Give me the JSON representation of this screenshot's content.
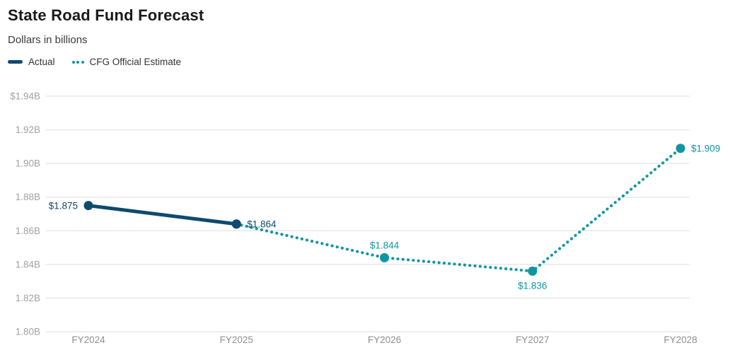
{
  "header": {
    "title": "State Road Fund Forecast",
    "subtitle": "Dollars in billions"
  },
  "legend": [
    {
      "label": "Actual",
      "color": "#0e4a6e",
      "style": "solid"
    },
    {
      "label": "CFG Official Estimate",
      "color": "#0f96a4",
      "style": "dotted"
    }
  ],
  "colors": {
    "actual": "#0e4a6e",
    "estimate": "#0f96a4",
    "gridline": "#e8e8e8",
    "y_tick_text": "#a2a2a2",
    "x_tick_text": "#8f8f8f",
    "title_text": "#1a1a1a"
  },
  "chart_data": {
    "type": "line",
    "title": "State Road Fund Forecast",
    "subtitle": "Dollars in billions",
    "categories": [
      "FY2024",
      "FY2025",
      "FY2026",
      "FY2027",
      "FY2028"
    ],
    "series": [
      {
        "name": "Actual",
        "style": "solid",
        "color": "#0e4a6e",
        "values": [
          1.875,
          1.864,
          null,
          null,
          null
        ]
      },
      {
        "name": "CFG Official Estimate",
        "style": "dotted",
        "color": "#0f96a4",
        "values": [
          null,
          1.864,
          1.844,
          1.836,
          1.909
        ]
      }
    ],
    "point_labels": [
      {
        "text": "$1.875",
        "x_index": 0,
        "value": 1.875,
        "color": "#0e4a6e",
        "placement": "left"
      },
      {
        "text": "$1.864",
        "x_index": 1,
        "value": 1.864,
        "color": "#0e4a6e",
        "placement": "right"
      },
      {
        "text": "$1.844",
        "x_index": 2,
        "value": 1.844,
        "color": "#0f96a4",
        "placement": "above"
      },
      {
        "text": "$1.836",
        "x_index": 3,
        "value": 1.836,
        "color": "#0f96a4",
        "placement": "below"
      },
      {
        "text": "$1.909",
        "x_index": 4,
        "value": 1.909,
        "color": "#0f96a4",
        "placement": "right"
      }
    ],
    "ylim": [
      1.8,
      1.94
    ],
    "ytick_step": 0.02,
    "yticks": [
      {
        "value": 1.94,
        "label": "$1.94B"
      },
      {
        "value": 1.92,
        "label": "1.92B"
      },
      {
        "value": 1.9,
        "label": "1.90B"
      },
      {
        "value": 1.88,
        "label": "1.88B"
      },
      {
        "value": 1.86,
        "label": "1.86B"
      },
      {
        "value": 1.84,
        "label": "1.84B"
      },
      {
        "value": 1.82,
        "label": "1.82B"
      },
      {
        "value": 1.8,
        "label": "1.80B"
      }
    ],
    "grid": true,
    "legend_position": "top-left"
  }
}
